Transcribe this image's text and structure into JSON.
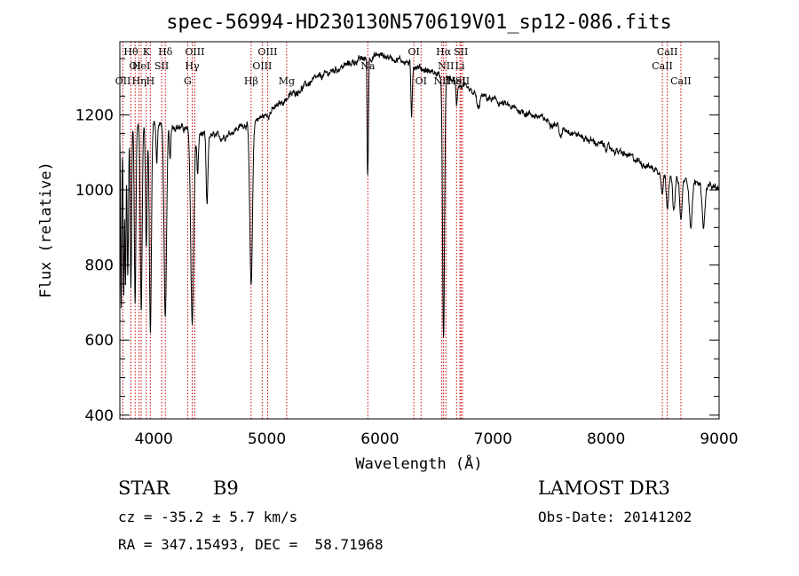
{
  "chart_data": {
    "type": "line",
    "title": "spec-56994-HD230130N570619V01_sp12-086.fits",
    "xlabel": "Wavelength (Å)",
    "ylabel": "Flux (relative)",
    "xlim": [
      3700,
      9000
    ],
    "ylim": [
      390,
      1395
    ],
    "xticks": [
      4000,
      5000,
      6000,
      7000,
      8000,
      9000
    ],
    "yticks": [
      400,
      600,
      800,
      1000,
      1200
    ],
    "x_minor_step": 200,
    "y_minor_step": 50,
    "continuum_points": [
      [
        3700,
        1160
      ],
      [
        3800,
        1170
      ],
      [
        4000,
        1180
      ],
      [
        4200,
        1170
      ],
      [
        4400,
        1150
      ],
      [
        4600,
        1140
      ],
      [
        4800,
        1175
      ],
      [
        5000,
        1200
      ],
      [
        5200,
        1250
      ],
      [
        5400,
        1290
      ],
      [
        5600,
        1320
      ],
      [
        5800,
        1345
      ],
      [
        6000,
        1360
      ],
      [
        6200,
        1345
      ],
      [
        6400,
        1320
      ],
      [
        6600,
        1300
      ],
      [
        6800,
        1260
      ],
      [
        7000,
        1240
      ],
      [
        7200,
        1215
      ],
      [
        7400,
        1195
      ],
      [
        7600,
        1170
      ],
      [
        7800,
        1140
      ],
      [
        8000,
        1115
      ],
      [
        8200,
        1090
      ],
      [
        8400,
        1060
      ],
      [
        8600,
        1030
      ],
      [
        8800,
        1020
      ],
      [
        9000,
        1000
      ]
    ],
    "absorption_features": [
      {
        "center": 3712,
        "depth": 480,
        "width": 5
      },
      {
        "center": 3734,
        "depth": 450,
        "width": 5
      },
      {
        "center": 3750,
        "depth": 420,
        "width": 5
      },
      {
        "center": 3770,
        "depth": 400,
        "width": 6
      },
      {
        "center": 3798,
        "depth": 430,
        "width": 6
      },
      {
        "center": 3835,
        "depth": 470,
        "width": 7
      },
      {
        "center": 3889,
        "depth": 500,
        "width": 8
      },
      {
        "center": 3934,
        "depth": 330,
        "width": 7
      },
      {
        "center": 3970,
        "depth": 560,
        "width": 9
      },
      {
        "center": 4026,
        "depth": 110,
        "width": 6
      },
      {
        "center": 4102,
        "depth": 520,
        "width": 11
      },
      {
        "center": 4144,
        "depth": 90,
        "width": 6
      },
      {
        "center": 4340,
        "depth": 510,
        "width": 13
      },
      {
        "center": 4388,
        "depth": 110,
        "width": 7
      },
      {
        "center": 4471,
        "depth": 190,
        "width": 8
      },
      {
        "center": 4861,
        "depth": 440,
        "width": 12
      },
      {
        "center": 5890,
        "depth": 260,
        "width": 4
      },
      {
        "center": 5897,
        "depth": 180,
        "width": 4
      },
      {
        "center": 6280,
        "depth": 140,
        "width": 6
      },
      {
        "center": 6563,
        "depth": 700,
        "width": 9
      },
      {
        "center": 6678,
        "depth": 55,
        "width": 6
      },
      {
        "center": 6870,
        "depth": 40,
        "width": 12
      },
      {
        "center": 7600,
        "depth": 35,
        "width": 10
      },
      {
        "center": 8498,
        "depth": 50,
        "width": 8
      },
      {
        "center": 8542,
        "depth": 80,
        "width": 9
      },
      {
        "center": 8600,
        "depth": 90,
        "width": 10
      },
      {
        "center": 8662,
        "depth": 110,
        "width": 10
      },
      {
        "center": 8750,
        "depth": 120,
        "width": 12
      },
      {
        "center": 8863,
        "depth": 110,
        "width": 12
      }
    ],
    "line_markers": [
      {
        "x": 3727,
        "label": "OII",
        "row": 2
      },
      {
        "x": 3798,
        "label": "Hθ",
        "row": 0
      },
      {
        "x": 3835,
        "label": "OI",
        "row": 1
      },
      {
        "x": 3870,
        "label": "Hη",
        "row": 2
      },
      {
        "x": 3889,
        "label": "HeI",
        "row": 1
      },
      {
        "x": 3934,
        "label": "K",
        "row": 0
      },
      {
        "x": 3970,
        "label": "H",
        "row": 2
      },
      {
        "x": 4070,
        "label": "SII",
        "row": 1
      },
      {
        "x": 4102,
        "label": "Hδ",
        "row": 0
      },
      {
        "x": 4300,
        "label": "G",
        "row": 2
      },
      {
        "x": 4340,
        "label": "Hγ",
        "row": 1
      },
      {
        "x": 4363,
        "label": "OIII",
        "row": 0
      },
      {
        "x": 4861,
        "label": "Hβ",
        "row": 2
      },
      {
        "x": 4959,
        "label": "OIII",
        "row": 1
      },
      {
        "x": 5007,
        "label": "OIII",
        "row": 0
      },
      {
        "x": 5175,
        "label": "Mg",
        "row": 2
      },
      {
        "x": 5893,
        "label": "Na",
        "row": 1
      },
      {
        "x": 6300,
        "label": "OI",
        "row": 0
      },
      {
        "x": 6364,
        "label": "OI",
        "row": 2
      },
      {
        "x": 6548,
        "label": "NII",
        "row": 2
      },
      {
        "x": 6563,
        "label": "Hα",
        "row": 0
      },
      {
        "x": 6584,
        "label": "NII",
        "row": 1
      },
      {
        "x": 6678,
        "label": "HeI",
        "row": 2
      },
      {
        "x": 6708,
        "label": "Li",
        "row": 1
      },
      {
        "x": 6717,
        "label": "SII",
        "row": 0
      },
      {
        "x": 6731,
        "label": "SII",
        "row": 2
      },
      {
        "x": 8498,
        "label": "CaII",
        "row": 1
      },
      {
        "x": 8542,
        "label": "CaII",
        "row": 0
      },
      {
        "x": 8662,
        "label": "CaII",
        "row": 2
      }
    ],
    "marker_color": "#cc0000",
    "grid": false,
    "legend": "none"
  },
  "info": {
    "class_label": "STAR",
    "subclass": "B9",
    "survey": "LAMOST DR3",
    "cz": "cz = -35.2 ± 5.7 km/s",
    "obs_date": "Obs-Date: 20141202",
    "coords": "RA = 347.15493, DEC =  58.71968"
  }
}
